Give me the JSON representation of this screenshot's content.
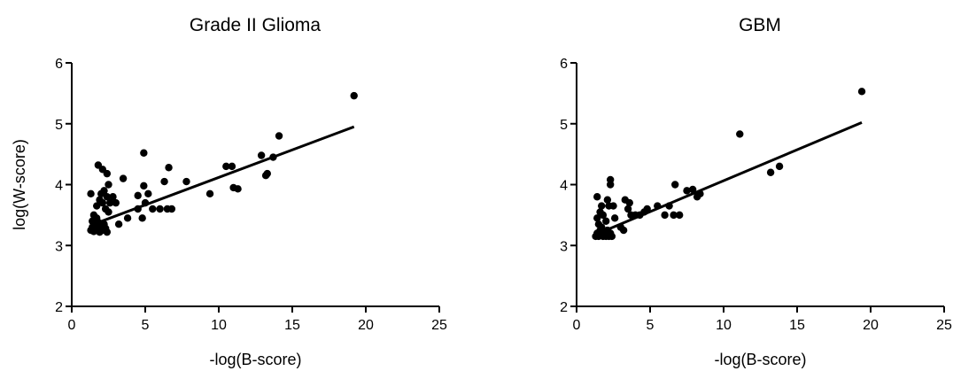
{
  "chart_data": [
    {
      "type": "scatter",
      "title": "Grade II Glioma",
      "xlabel": "-log(B-score)",
      "ylabel": "log(W-score)",
      "xlim": [
        0,
        25
      ],
      "ylim": [
        2,
        6
      ],
      "xticks": [
        0,
        5,
        10,
        15,
        20,
        25
      ],
      "yticks": [
        2,
        3,
        4,
        5,
        6
      ],
      "grid": false,
      "points": [
        [
          1.3,
          3.25
        ],
        [
          1.4,
          3.3
        ],
        [
          1.5,
          3.23
        ],
        [
          1.6,
          3.35
        ],
        [
          1.4,
          3.4
        ],
        [
          1.7,
          3.45
        ],
        [
          1.5,
          3.5
        ],
        [
          1.8,
          3.3
        ],
        [
          1.9,
          3.22
        ],
        [
          2.0,
          3.3
        ],
        [
          2.1,
          3.25
        ],
        [
          2.2,
          3.35
        ],
        [
          1.6,
          3.27
        ],
        [
          1.8,
          3.38
        ],
        [
          2.3,
          3.28
        ],
        [
          2.4,
          3.22
        ],
        [
          1.3,
          3.85
        ],
        [
          1.7,
          3.65
        ],
        [
          1.9,
          3.75
        ],
        [
          2.0,
          3.85
        ],
        [
          2.1,
          3.7
        ],
        [
          2.2,
          3.9
        ],
        [
          2.3,
          3.6
        ],
        [
          2.4,
          3.8
        ],
        [
          2.5,
          4.0
        ],
        [
          2.6,
          3.7
        ],
        [
          1.8,
          4.32
        ],
        [
          2.1,
          4.25
        ],
        [
          2.4,
          4.18
        ],
        [
          2.5,
          3.55
        ],
        [
          2.8,
          3.8
        ],
        [
          3.0,
          3.7
        ],
        [
          3.2,
          3.35
        ],
        [
          3.5,
          4.1
        ],
        [
          3.8,
          3.45
        ],
        [
          4.5,
          3.6
        ],
        [
          4.5,
          3.82
        ],
        [
          4.8,
          3.45
        ],
        [
          4.9,
          3.98
        ],
        [
          4.9,
          4.52
        ],
        [
          5.0,
          3.7
        ],
        [
          5.2,
          3.85
        ],
        [
          5.5,
          3.6
        ],
        [
          6.0,
          3.6
        ],
        [
          6.3,
          4.05
        ],
        [
          6.5,
          3.6
        ],
        [
          6.6,
          4.28
        ],
        [
          6.8,
          3.6
        ],
        [
          7.8,
          4.05
        ],
        [
          9.4,
          3.85
        ],
        [
          10.5,
          4.3
        ],
        [
          10.9,
          4.3
        ],
        [
          11.0,
          3.95
        ],
        [
          11.3,
          3.93
        ],
        [
          12.9,
          4.48
        ],
        [
          13.2,
          4.15
        ],
        [
          13.3,
          4.18
        ],
        [
          13.7,
          4.45
        ],
        [
          14.1,
          4.8
        ],
        [
          19.2,
          5.46
        ]
      ],
      "trend_line": {
        "x": [
          1.5,
          19.2
        ],
        "y": [
          3.35,
          4.95
        ]
      }
    },
    {
      "type": "scatter",
      "title": "GBM",
      "xlabel": "-log(B-score)",
      "ylabel": "",
      "xlim": [
        0,
        25
      ],
      "ylim": [
        2,
        6
      ],
      "xticks": [
        0,
        5,
        10,
        15,
        20,
        25
      ],
      "yticks": [
        2,
        3,
        4,
        5,
        6
      ],
      "grid": false,
      "points": [
        [
          1.3,
          3.15
        ],
        [
          1.4,
          3.2
        ],
        [
          1.5,
          3.15
        ],
        [
          1.6,
          3.25
        ],
        [
          1.5,
          3.35
        ],
        [
          1.7,
          3.3
        ],
        [
          1.8,
          3.15
        ],
        [
          1.9,
          3.2
        ],
        [
          2.0,
          3.15
        ],
        [
          2.1,
          3.25
        ],
        [
          2.2,
          3.15
        ],
        [
          2.3,
          3.2
        ],
        [
          2.4,
          3.15
        ],
        [
          1.4,
          3.45
        ],
        [
          1.6,
          3.55
        ],
        [
          1.8,
          3.5
        ],
        [
          2.0,
          3.4
        ],
        [
          2.2,
          3.65
        ],
        [
          1.4,
          3.8
        ],
        [
          1.7,
          3.65
        ],
        [
          2.1,
          3.75
        ],
        [
          2.3,
          4.08
        ],
        [
          2.3,
          4.0
        ],
        [
          2.5,
          3.65
        ],
        [
          2.6,
          3.45
        ],
        [
          3.0,
          3.3
        ],
        [
          3.2,
          3.25
        ],
        [
          3.3,
          3.75
        ],
        [
          3.5,
          3.6
        ],
        [
          3.6,
          3.7
        ],
        [
          3.7,
          3.5
        ],
        [
          4.0,
          3.5
        ],
        [
          4.3,
          3.5
        ],
        [
          4.6,
          3.55
        ],
        [
          4.8,
          3.6
        ],
        [
          5.5,
          3.65
        ],
        [
          6.0,
          3.5
        ],
        [
          6.3,
          3.65
        ],
        [
          6.6,
          3.5
        ],
        [
          6.7,
          4.0
        ],
        [
          7.0,
          3.5
        ],
        [
          7.5,
          3.9
        ],
        [
          7.9,
          3.92
        ],
        [
          8.2,
          3.8
        ],
        [
          8.4,
          3.85
        ],
        [
          11.1,
          4.83
        ],
        [
          13.2,
          4.2
        ],
        [
          13.8,
          4.3
        ],
        [
          19.4,
          5.53
        ]
      ],
      "trend_line": {
        "x": [
          1.5,
          19.4
        ],
        "y": [
          3.2,
          5.02
        ]
      }
    }
  ]
}
